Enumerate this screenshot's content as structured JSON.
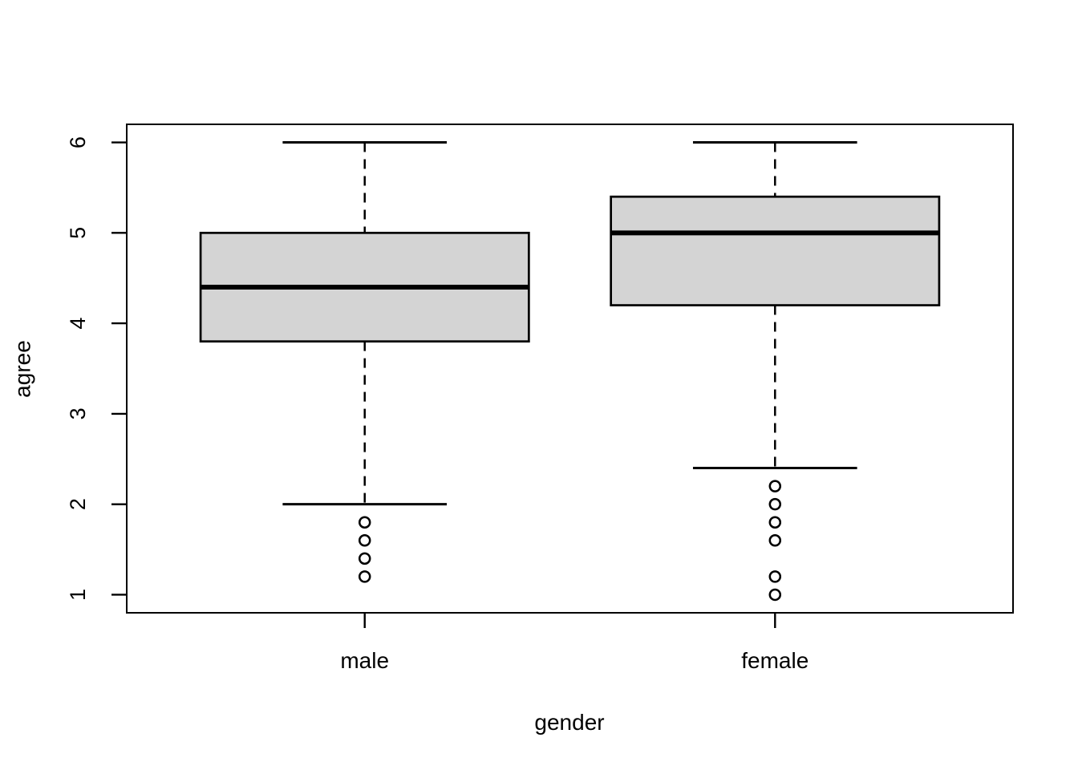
{
  "chart_data": {
    "type": "boxplot",
    "title": "",
    "xlabel": "gender",
    "ylabel": "agree",
    "categories": [
      "male",
      "female"
    ],
    "y_ticks": [
      1,
      2,
      3,
      4,
      5,
      6
    ],
    "ylim": [
      0.8,
      6.2
    ],
    "grid": false,
    "legend": "none",
    "series": [
      {
        "name": "male",
        "q1": 3.8,
        "median": 4.4,
        "q3": 5.0,
        "whisker_low": 2.0,
        "whisker_high": 6.0,
        "outliers": [
          1.8,
          1.6,
          1.4,
          1.2
        ]
      },
      {
        "name": "female",
        "q1": 4.2,
        "median": 5.0,
        "q3": 5.4,
        "whisker_low": 2.4,
        "whisker_high": 6.0,
        "outliers": [
          2.2,
          2.0,
          1.8,
          1.6,
          1.2,
          1.0
        ]
      }
    ],
    "colors": {
      "box_fill": "#d4d4d4",
      "stroke": "#000000",
      "background": "#ffffff"
    }
  }
}
